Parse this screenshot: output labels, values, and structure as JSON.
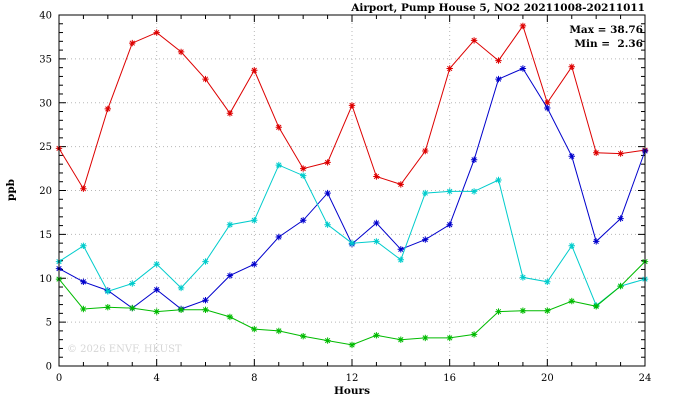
{
  "watermark": "© 2026 ENVF, HKUST",
  "annotations": {
    "max_label": "Max = 38.76",
    "min_label": "Min =  2.36"
  },
  "chart_data": {
    "type": "line",
    "title": "Airport, Pump House 5, NO2 20211008-20211011",
    "xlabel": "Hours",
    "ylabel": "ppb",
    "xlim": [
      0,
      24
    ],
    "ylim": [
      0,
      40
    ],
    "xticks": [
      0,
      4,
      8,
      12,
      16,
      20,
      24
    ],
    "yticks": [
      0,
      5,
      10,
      15,
      20,
      25,
      30,
      35,
      40
    ],
    "x_minor_step": 1,
    "y_minor_step": 1,
    "grid": true,
    "legend": "none",
    "max": 38.76,
    "min": 2.36,
    "x": [
      0,
      1,
      2,
      3,
      4,
      5,
      6,
      7,
      8,
      9,
      10,
      11,
      12,
      13,
      14,
      15,
      16,
      17,
      18,
      19,
      20,
      21,
      22,
      23,
      24
    ],
    "series": [
      {
        "name": "red",
        "color": "#dd0000",
        "marker": "asterisk",
        "values": [
          24.8,
          20.2,
          29.3,
          36.8,
          38.0,
          35.8,
          32.7,
          28.8,
          33.7,
          27.2,
          22.5,
          23.2,
          29.7,
          21.6,
          20.7,
          24.5,
          33.9,
          37.1,
          34.8,
          38.76,
          30.0,
          34.1,
          24.3,
          24.2,
          24.6
        ]
      },
      {
        "name": "blue",
        "color": "#0000cc",
        "marker": "asterisk",
        "values": [
          11.1,
          9.6,
          8.6,
          6.6,
          8.7,
          6.5,
          7.5,
          10.3,
          11.6,
          14.7,
          16.6,
          19.7,
          13.9,
          16.3,
          13.3,
          14.4,
          16.1,
          23.5,
          32.7,
          33.9,
          29.4,
          23.9,
          14.2,
          16.8,
          24.5
        ]
      },
      {
        "name": "cyan",
        "color": "#00cccc",
        "marker": "asterisk",
        "values": [
          11.9,
          13.7,
          8.5,
          9.4,
          11.6,
          8.9,
          11.9,
          16.1,
          16.6,
          22.9,
          21.7,
          16.1,
          14.0,
          14.2,
          12.1,
          19.7,
          19.9,
          19.9,
          21.2,
          10.1,
          9.6,
          13.7,
          6.9,
          9.1,
          9.9
        ]
      },
      {
        "name": "green",
        "color": "#00bb00",
        "marker": "asterisk",
        "values": [
          9.9,
          6.5,
          6.7,
          6.6,
          6.2,
          6.4,
          6.4,
          5.6,
          4.2,
          4.0,
          3.4,
          2.9,
          2.4,
          3.5,
          3.0,
          3.2,
          3.2,
          3.6,
          6.2,
          6.3,
          6.3,
          7.4,
          6.8,
          9.1,
          11.9
        ]
      }
    ]
  }
}
